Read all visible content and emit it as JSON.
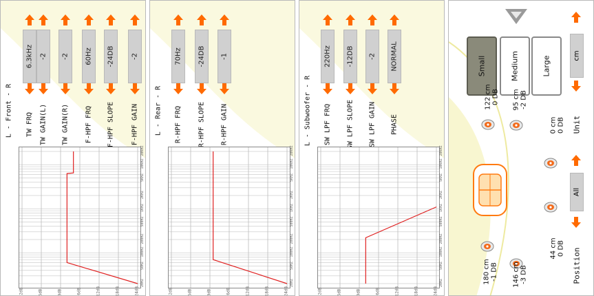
{
  "front": {
    "title": "L - Front - R",
    "controls": [
      {
        "label": "TW FRQ",
        "value": "6.3kHz"
      },
      {
        "label": "TW GAIN(L)",
        "value": "-2"
      },
      {
        "label": "TW GAIN(R)",
        "value": "-2"
      },
      {
        "label": "F-HPF FRQ",
        "value": "60Hz"
      },
      {
        "label": "F-HPF SLOPE",
        "value": "-24DB"
      },
      {
        "label": "F-HPF GAIN",
        "value": "-2"
      }
    ]
  },
  "rear": {
    "title": "L - Rear - R",
    "controls": [
      {
        "label": "R-HPF FRQ",
        "value": "70Hz"
      },
      {
        "label": "R-HPF SLOPE",
        "value": "-24DB"
      },
      {
        "label": "R-HPF GAIN",
        "value": "-1"
      }
    ]
  },
  "sub": {
    "title": "L - Subwoofer - R",
    "controls": [
      {
        "label": "SW LPF FRQ",
        "value": "220Hz"
      },
      {
        "label": "SW LPF SLOPE",
        "value": "-12DB"
      },
      {
        "label": "SW LPF GAIN",
        "value": "-2"
      },
      {
        "label": "PHASE",
        "value": "NORMAL"
      }
    ]
  },
  "graph_axis": {
    "y_ticks": [
      "12dB",
      "6dB",
      "0dB",
      "-6dB",
      "-12dB",
      "-18dB",
      "-24dB"
    ],
    "x_ticks": [
      "20HZ",
      "50HZ",
      "100HZ",
      "200HZ",
      "500HZ",
      "1KHZ",
      "2KHZ",
      "5KHZ",
      "10KHZ",
      "20KHZ"
    ]
  },
  "speakers": {
    "fl": {
      "distance": "180 cm",
      "gain": "-1 DB"
    },
    "fr": {
      "distance": "146 cm",
      "gain": "-3 DB"
    },
    "rl": {
      "distance": "122 cm",
      "gain": "0 DB"
    },
    "rr": {
      "distance": "95 cm",
      "gain": "-2 DB"
    },
    "sub_l": {
      "distance": "44 cm",
      "gain": "0 DB"
    },
    "sub_r": {
      "distance": "0 cm",
      "gain": "0 DB"
    }
  },
  "size_buttons": {
    "small": "Small",
    "medium": "Medium",
    "large": "Large"
  },
  "position": {
    "label": "Position",
    "value": "All"
  },
  "unit": {
    "label": "Unit",
    "value": "cm"
  },
  "colors": {
    "accent": "#ff6a00",
    "curve": "#e02020",
    "wave": "#f4f2a0"
  }
}
